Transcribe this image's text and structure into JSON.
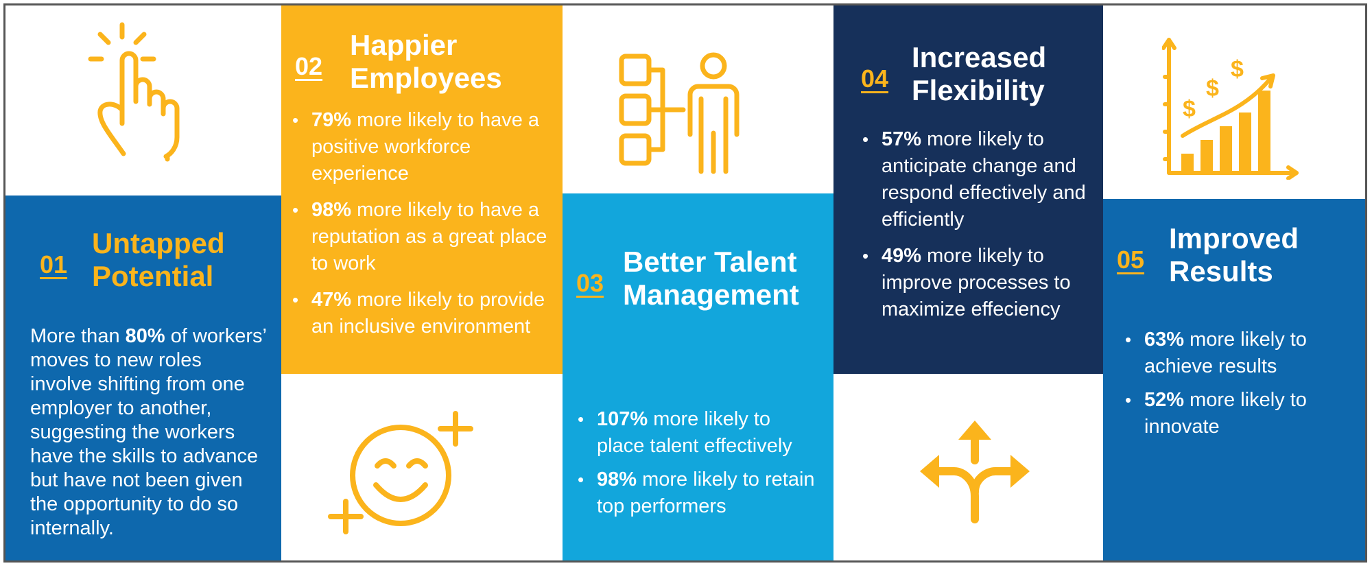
{
  "colors": {
    "blue": "#0e68ad",
    "yellow": "#fbb41c",
    "sky": "#12a6dc",
    "navy": "#16305a",
    "white": "#ffffff"
  },
  "card1": {
    "number": "01",
    "title_line1": "Untapped",
    "title_line2": "Potential",
    "body_pre": "More than ",
    "body_bold": "80%",
    "body_post": " of workers’ moves to new roles involve shifting from one employer to another, suggesting the workers have the skills to advance but have not been given the opportunity to do so internally.",
    "icon": "pointing-hand-icon"
  },
  "card2": {
    "number": "02",
    "title_line1": "Happier",
    "title_line2": "Employees",
    "bullets": [
      {
        "stat": "79%",
        "text": " more likely to have a positive workforce experience"
      },
      {
        "stat": "98%",
        "text": " more likely to have a reputation as a great place to work"
      },
      {
        "stat": "47%",
        "text": " more likely to provide an inclusive environment"
      }
    ],
    "icon": "smiley-sparkle-icon"
  },
  "card3": {
    "number": "03",
    "title_line1": "Better Talent",
    "title_line2": "Management",
    "bullets": [
      {
        "stat": "107%",
        "text": " more likely to place talent effectively"
      },
      {
        "stat": "98%",
        "text": " more likely to retain top performers"
      }
    ],
    "icon": "person-org-chart-icon"
  },
  "card4": {
    "number": "04",
    "title_line1": "Increased",
    "title_line2": "Flexibility",
    "bullets": [
      {
        "stat": "57%",
        "text": " more likely to anticipate change and respond effectively and efficiently"
      },
      {
        "stat": "49%",
        "text": " more likely to improve processes to maximize effeciency"
      }
    ],
    "icon": "three-way-arrows-icon"
  },
  "card5": {
    "number": "05",
    "title_line1": "Improved",
    "title_line2": "Results",
    "bullets": [
      {
        "stat": "63%",
        "text": " more likely to achieve results"
      },
      {
        "stat": "52%",
        "text": " more likely to innovate"
      }
    ],
    "icon": "growth-chart-dollar-icon"
  }
}
